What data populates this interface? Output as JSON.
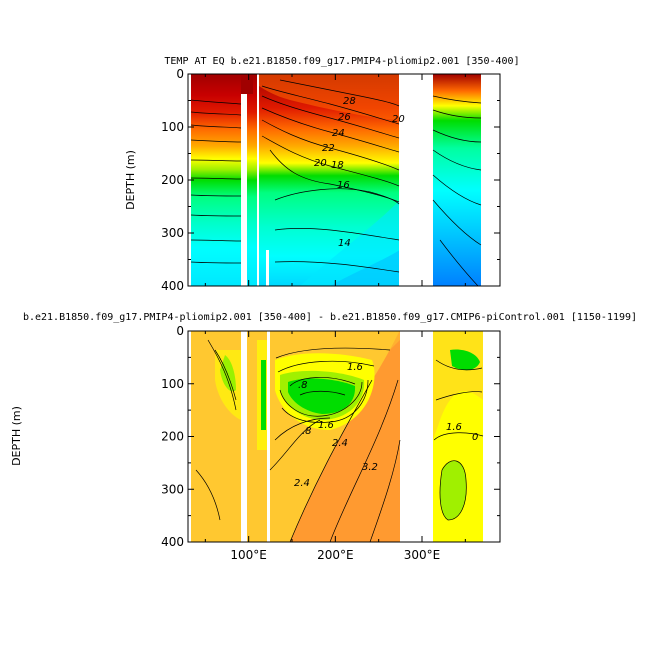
{
  "chart_data": [
    {
      "type": "heatmap",
      "title": "TEMP AT EQ b.e21.B1850.f09_g17.PMIP4-pliomip2.001 [350-400]",
      "xlabel": "",
      "ylabel": "DEPTH (m)",
      "xlim": [
        30,
        390
      ],
      "ylim": [
        400,
        0
      ],
      "y_ticks": [
        "0",
        "100",
        "200",
        "300",
        "400"
      ],
      "x_ticks": [],
      "data_columns_lon": [
        [
          40,
          102
        ],
        [
          108,
          120
        ],
        [
          122,
          278
        ],
        [
          318,
          375
        ]
      ],
      "contour_labels": [
        "28",
        "26",
        "24",
        "22",
        "20",
        "18",
        "16",
        "14",
        "20"
      ],
      "colors": [
        "#a00000",
        "#e01a00",
        "#ff6a00",
        "#ffaa00",
        "#ffff00",
        "#a0f000",
        "#00dd00",
        "#00ffa0",
        "#00ffff",
        "#00c8ff",
        "#0096ff",
        "#0040ff"
      ]
    },
    {
      "type": "heatmap",
      "title": "b.e21.B1850.f09_g17.PMIP4-pliomip2.001 [350-400] - b.e21.B1850.f09_g17.CMIP6-piControl.001 [1150-1199]",
      "xlabel": "",
      "ylabel": "DEPTH (m)",
      "xlim": [
        30,
        390
      ],
      "ylim": [
        400,
        0
      ],
      "y_ticks": [
        "0",
        "100",
        "200",
        "300",
        "400"
      ],
      "x_ticks": [
        "100°E",
        "200°E",
        "300°E"
      ],
      "contour_labels": [
        "1.6",
        ".8",
        "1.6",
        "2.4",
        ".8",
        "3.2",
        "2.4",
        "1.6",
        "0"
      ],
      "colors": [
        "#ffc830",
        "#ff9a30",
        "#ffff00",
        "#a0f000",
        "#00dd00"
      ]
    }
  ]
}
